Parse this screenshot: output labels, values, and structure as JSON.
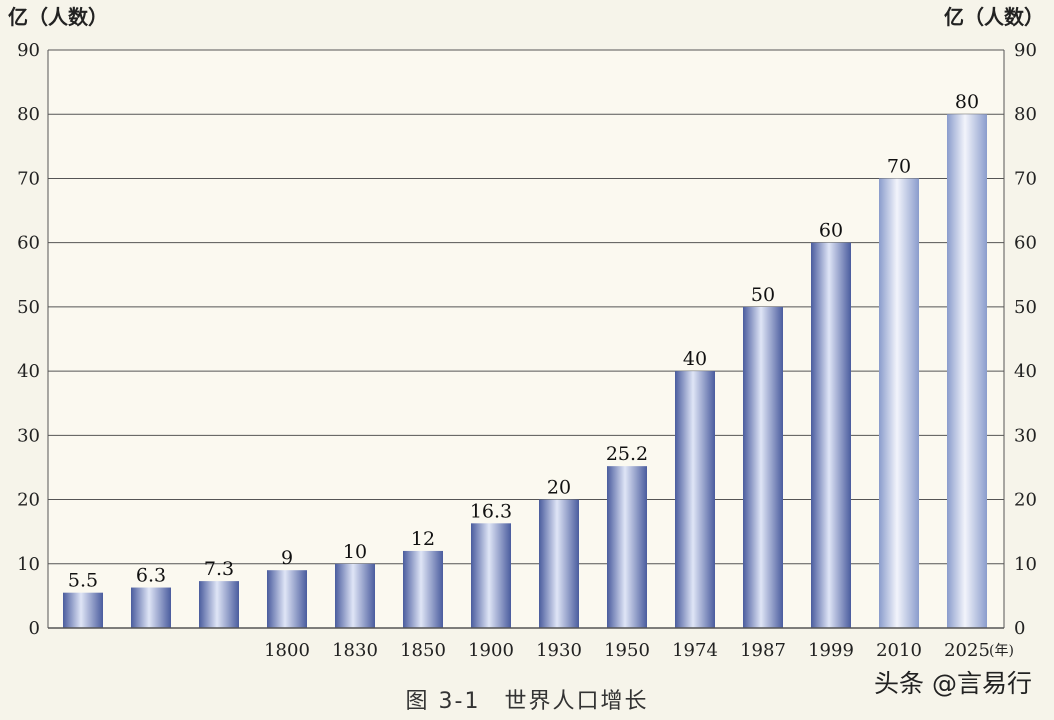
{
  "caption": "图 3-1　世界人口增长",
  "watermark": "头条 @言易行",
  "chart_data": {
    "type": "bar",
    "title": "图 3-1　世界人口增长",
    "ylabel_left": "亿（人数）",
    "ylabel_right": "亿（人数）",
    "xlabel_unit": "(年)",
    "ylim": [
      0,
      90
    ],
    "yticks": [
      0,
      10,
      20,
      30,
      40,
      50,
      60,
      70,
      80,
      90
    ],
    "grid": true,
    "categories": [
      "",
      "",
      "",
      "1800",
      "1830",
      "1850",
      "1900",
      "1930",
      "1950",
      "1974",
      "1987",
      "1999",
      "2010",
      "2025"
    ],
    "values": [
      5.5,
      6.3,
      7.3,
      9,
      10,
      12,
      16.3,
      20,
      25.2,
      40,
      50,
      60,
      70,
      80
    ],
    "value_labels": [
      "5.5",
      "6.3",
      "7.3",
      "9",
      "10",
      "12",
      "16.3",
      "20",
      "25.2",
      "40",
      "50",
      "60",
      "70",
      "80"
    ],
    "bar_color": "#5c6fb0",
    "last_bars_color": "#c9d2ea"
  }
}
